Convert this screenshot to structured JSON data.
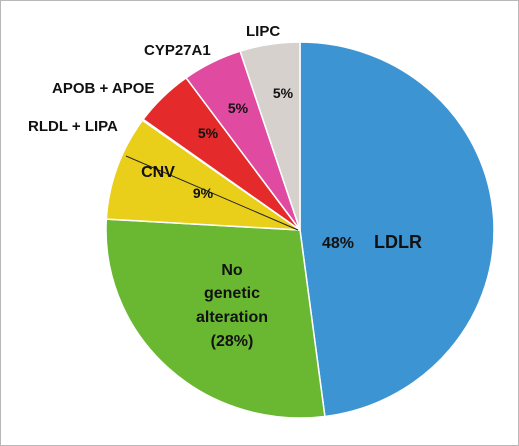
{
  "chart_data": {
    "type": "pie",
    "slices": [
      {
        "name": "LDLR",
        "value": 48,
        "label": "48%",
        "color": "#3d94d2"
      },
      {
        "name": "No genetic alteration",
        "value": 28,
        "label": "(28%)",
        "color": "#6ab832"
      },
      {
        "name": "CNV",
        "value": 9,
        "label": "9%",
        "color": "#e9cf19"
      },
      {
        "name": "RLDL + LIPA",
        "value": 0.1,
        "label": "",
        "color": "#e9cf19"
      },
      {
        "name": "APOB + APOE",
        "value": 5,
        "label": "5%",
        "color": "#e42a2a"
      },
      {
        "name": "CYP27A1",
        "value": 5,
        "label": "5%",
        "color": "#e04aa0"
      },
      {
        "name": "LIPC",
        "value": 5,
        "label": "5%",
        "color": "#d6d1cc"
      }
    ],
    "labels": {
      "ldlr": "LDLR",
      "ldlr_pct": "48%",
      "none_line1": "No",
      "none_line2": "genetic",
      "none_line3": "alteration",
      "none_pct": "(28%)",
      "cnv": "CNV",
      "cnv_pct": "9%",
      "rldl": "RLDL + LIPA",
      "apob": "APOB + APOE",
      "apob_pct": "5%",
      "cyp": "CYP27A1",
      "cyp_pct": "5%",
      "lipc": "LIPC",
      "lipc_pct": "5%"
    }
  }
}
